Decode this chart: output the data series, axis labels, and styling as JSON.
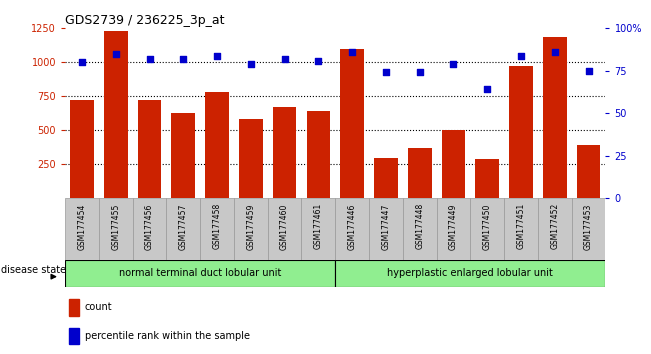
{
  "title": "GDS2739 / 236225_3p_at",
  "samples": [
    "GSM177454",
    "GSM177455",
    "GSM177456",
    "GSM177457",
    "GSM177458",
    "GSM177459",
    "GSM177460",
    "GSM177461",
    "GSM177446",
    "GSM177447",
    "GSM177448",
    "GSM177449",
    "GSM177450",
    "GSM177451",
    "GSM177452",
    "GSM177453"
  ],
  "counts": [
    720,
    1230,
    720,
    630,
    780,
    580,
    670,
    640,
    1100,
    295,
    370,
    505,
    285,
    970,
    1185,
    395
  ],
  "percentiles": [
    80,
    85,
    82,
    82,
    84,
    79,
    82,
    81,
    86,
    74,
    74,
    79,
    64,
    84,
    86,
    75
  ],
  "group1_label": "normal terminal duct lobular unit",
  "group2_label": "hyperplastic enlarged lobular unit",
  "group1_count": 8,
  "group2_count": 8,
  "bar_color": "#cc2200",
  "dot_color": "#0000cc",
  "ylim_left": [
    0,
    1250
  ],
  "ylim_right": [
    0,
    100
  ],
  "yticks_left": [
    250,
    500,
    750,
    1000,
    1250
  ],
  "yticks_right": [
    0,
    25,
    50,
    75,
    100
  ],
  "grid_lines": [
    250,
    500,
    750,
    1000
  ],
  "tick_bg": "#c8c8c8",
  "group1_color": "#90ee90",
  "group2_color": "#90ee90",
  "disease_state_label": "disease state",
  "legend_count_label": "count",
  "legend_percentile_label": "percentile rank within the sample"
}
